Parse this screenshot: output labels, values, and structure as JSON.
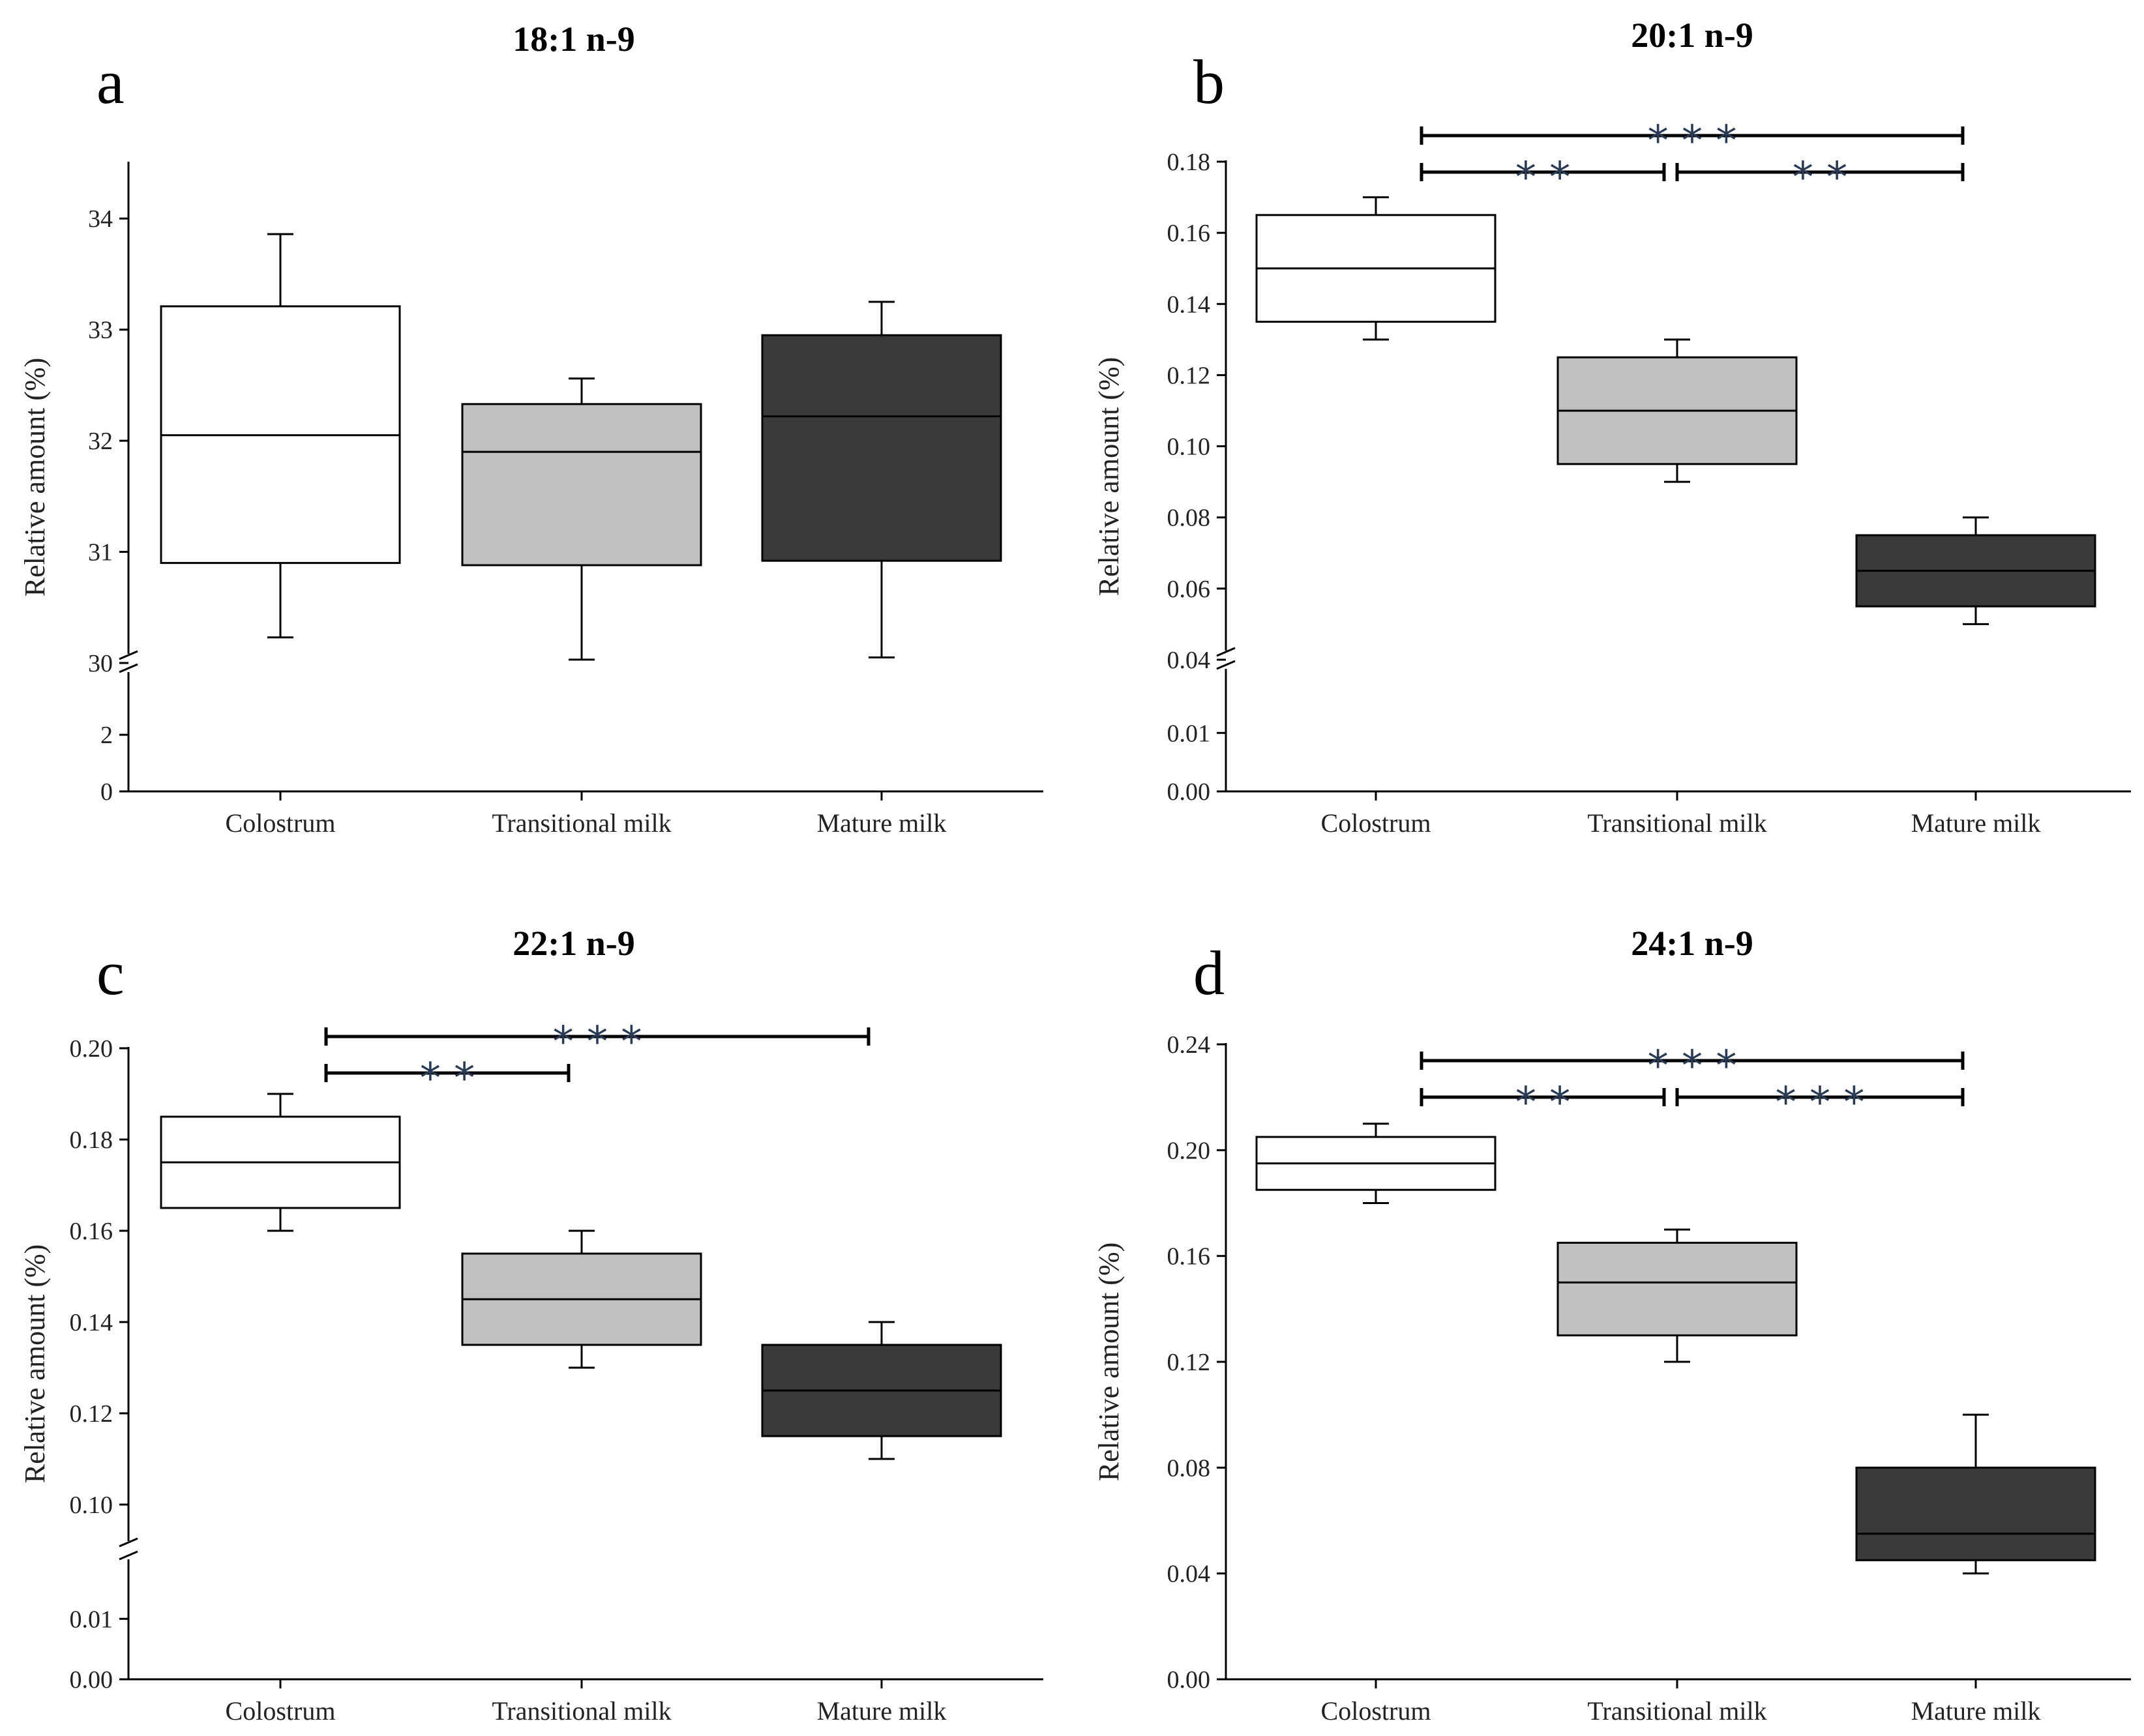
{
  "chart_data": [
    {
      "type": "box",
      "panel_letter": "a",
      "title": "18:1 n-9",
      "ylabel": "Relative amount (%)",
      "categories": [
        "Colostrum",
        "Transitional milk",
        "Mature milk"
      ],
      "fill_colors": [
        "#ffffff",
        "#c0c0c0",
        "#3a3a3a"
      ],
      "broken_axis": true,
      "lower_ylim": [
        0,
        3.5
      ],
      "lower_ticks": [
        "0",
        "2"
      ],
      "upper_ylim": [
        30,
        34.5
      ],
      "upper_ticks": [
        "30",
        "31",
        "32",
        "33",
        "34"
      ],
      "boxes": [
        {
          "min": 30.23,
          "q1": 30.9,
          "median": 32.05,
          "q3": 33.21,
          "max": 33.86
        },
        {
          "min": 30.03,
          "q1": 30.88,
          "median": 31.9,
          "q3": 32.33,
          "max": 32.56
        },
        {
          "min": 30.05,
          "q1": 30.92,
          "median": 32.22,
          "q3": 32.95,
          "max": 33.25
        }
      ],
      "significance": []
    },
    {
      "type": "box",
      "panel_letter": "b",
      "title": "20:1 n-9",
      "ylabel": "Relative amount (%)",
      "categories": [
        "Colostrum",
        "Transitional milk",
        "Mature milk"
      ],
      "fill_colors": [
        "#ffffff",
        "#c0c0c0",
        "#3a3a3a"
      ],
      "broken_axis": true,
      "lower_ylim": [
        0,
        0.0175
      ],
      "lower_ticks": [
        "0.00",
        "0.01"
      ],
      "upper_ylim": [
        0.04,
        0.18
      ],
      "upper_ticks": [
        "0.04",
        "0.06",
        "0.08",
        "0.10",
        "0.12",
        "0.14",
        "0.16",
        "0.18"
      ],
      "boxes": [
        {
          "min": 0.13,
          "q1": 0.135,
          "median": 0.15,
          "q3": 0.165,
          "max": 0.17
        },
        {
          "min": 0.09,
          "q1": 0.095,
          "median": 0.11,
          "q3": 0.125,
          "max": 0.13
        },
        {
          "min": 0.05,
          "q1": 0.055,
          "median": 0.065,
          "q3": 0.075,
          "max": 0.08
        }
      ],
      "significance": [
        {
          "from": 0,
          "to": 2,
          "label": "* * *",
          "level": 2
        },
        {
          "from": 0,
          "to": 1,
          "label": "* *",
          "level": 1
        },
        {
          "from": 1,
          "to": 2,
          "label": "* *",
          "level": 1
        }
      ]
    },
    {
      "type": "box",
      "panel_letter": "c",
      "title": "22:1 n-9",
      "ylabel": "Relative amount (%)",
      "categories": [
        "Colostrum",
        "Transitional milk",
        "Mature milk"
      ],
      "fill_colors": [
        "#ffffff",
        "#c0c0c0",
        "#3a3a3a"
      ],
      "broken_axis": true,
      "lower_ylim": [
        0,
        0.0165
      ],
      "lower_ticks": [
        "0.00",
        "0.01"
      ],
      "upper_ylim": [
        0.09,
        0.2
      ],
      "upper_ticks": [
        "0.10",
        "0.12",
        "0.14",
        "0.16",
        "0.18",
        "0.20"
      ],
      "boxes": [
        {
          "min": 0.16,
          "q1": 0.165,
          "median": 0.175,
          "q3": 0.185,
          "max": 0.19
        },
        {
          "min": 0.13,
          "q1": 0.135,
          "median": 0.145,
          "q3": 0.155,
          "max": 0.16
        },
        {
          "min": 0.11,
          "q1": 0.115,
          "median": 0.125,
          "q3": 0.135,
          "max": 0.14
        }
      ],
      "significance": [
        {
          "from": 0,
          "to": 2,
          "label": "* * *",
          "level": 2
        },
        {
          "from": 0,
          "to": 1,
          "label": "* *",
          "level": 1
        }
      ]
    },
    {
      "type": "box",
      "panel_letter": "d",
      "title": "24:1 n-9",
      "ylabel": "Relative amount (%)",
      "categories": [
        "Colostrum",
        "Transitional milk",
        "Mature milk"
      ],
      "fill_colors": [
        "#ffffff",
        "#c0c0c0",
        "#3a3a3a"
      ],
      "broken_axis": false,
      "ylim": [
        0,
        0.24
      ],
      "yticks": [
        "0.00",
        "0.04",
        "0.08",
        "0.12",
        "0.16",
        "0.20",
        "0.24"
      ],
      "boxes": [
        {
          "min": 0.18,
          "q1": 0.185,
          "median": 0.195,
          "q3": 0.205,
          "max": 0.21
        },
        {
          "min": 0.12,
          "q1": 0.13,
          "median": 0.15,
          "q3": 0.165,
          "max": 0.17
        },
        {
          "min": 0.04,
          "q1": 0.045,
          "median": 0.055,
          "q3": 0.08,
          "max": 0.1
        }
      ],
      "significance": [
        {
          "from": 0,
          "to": 2,
          "label": "* * *",
          "level": 2
        },
        {
          "from": 0,
          "to": 1,
          "label": "* *",
          "level": 1
        },
        {
          "from": 1,
          "to": 2,
          "label": "* * *",
          "level": 1
        }
      ]
    }
  ]
}
